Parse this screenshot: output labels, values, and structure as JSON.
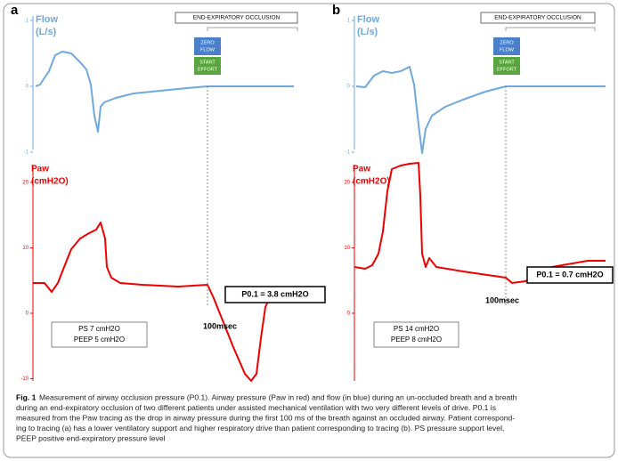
{
  "panels": [
    {
      "label": "a",
      "flow_label": [
        "Flow",
        "(L/s)"
      ],
      "flow_ticks": [
        1,
        0,
        -1
      ],
      "paw_label": [
        "Paw",
        "(cmH2O)"
      ],
      "paw_ticks": [
        20,
        10,
        0,
        -10
      ],
      "occlusion": "END-EXPIRATORY OCCLUSION",
      "zero_flow": [
        "ZERO",
        "FLOW"
      ],
      "start_effort": [
        "START",
        "EFFORT"
      ],
      "p01": "P0.1 = 3.8 cmH2O",
      "interval": "100msec",
      "settings": [
        "PS 7 cmH2O",
        "PEEP 5 cmH2O"
      ]
    },
    {
      "label": "b",
      "flow_label": [
        "Flow",
        "(L/s)"
      ],
      "flow_ticks": [
        1,
        0,
        -1
      ],
      "paw_label": [
        "Paw",
        "(cmH2O)"
      ],
      "paw_ticks": [
        20,
        10,
        0
      ],
      "occlusion": "END-EXPIRATORY OCCLUSION",
      "zero_flow": [
        "ZERO",
        "FLOW"
      ],
      "start_effort": [
        "START",
        "EFFORT"
      ],
      "p01": "P0.1 = 0.7 cmH2O",
      "interval": "100msec",
      "settings": [
        "PS 14 cmH2O",
        "PEEP 8 cmH2O"
      ]
    }
  ],
  "caption": {
    "label": "Fig. 1",
    "lines": [
      " Measurement of airway occlusion pressure (P0.1). Airway pressure (Paw in red) and flow (in blue) during an un-occluded breath and a breath",
      "during an end-expiratory occlusion of two different patients under assisted mechanical ventilation with two very different levels of drive. P0.1 is",
      "measured from the Paw tracing as the drop in airway pressure during the first 100 ms of the breath against an occluded airway. Patient correspond-",
      "ing to tracing (a) has a lower ventilatory support and higher respiratory drive than patient corresponding to tracing (b). PS pressure support level,",
      "PEEP positive end-expiratory pressure level"
    ]
  }
}
